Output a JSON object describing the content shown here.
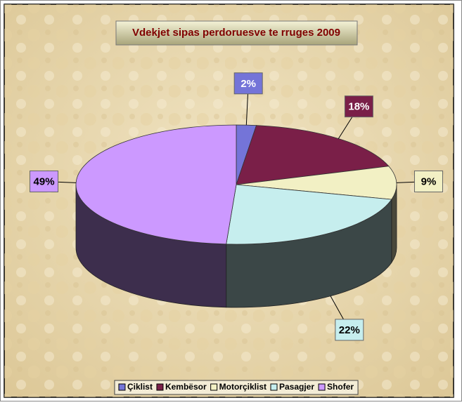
{
  "chart_data": {
    "type": "pie3d",
    "title": "Vdekjet sipas perdoruesve te rruges 2009",
    "categories": [
      "Çiklist",
      "Kembësor",
      "Motorçiklist",
      "Pasagjer",
      "Shofer"
    ],
    "values": [
      2,
      18,
      9,
      22,
      49
    ],
    "value_labels": [
      "2%",
      "18%",
      "9%",
      "22%",
      "49%"
    ],
    "colors": [
      "#7474d8",
      "#7a1f48",
      "#f2f0c4",
      "#c6eeee",
      "#cc99ff"
    ],
    "legend": "bottom"
  }
}
